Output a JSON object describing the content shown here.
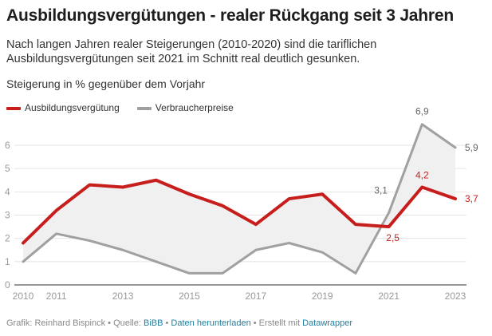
{
  "title": "Ausbildungsvergütungen - realer Rückgang seit 3 Jahren",
  "description": "Nach langen Jahren realer Steigerungen (2010-2020) sind die tariflichen Ausbildungsvergütungen seit 2021 im Schnitt real deutlich gesunken.",
  "footer": {
    "credit": "Grafik: Reinhard Bispinck • Quelle: ",
    "source": "BiBB",
    "sep1": " • ",
    "download": "Daten herunterladen",
    "sep2": " • Erstellt mit ",
    "tool": "Datawrapper"
  },
  "chart_data": {
    "type": "line",
    "title": "Steigerung in % gegenüber dem Vorjahr",
    "x": [
      2010,
      2011,
      2012,
      2013,
      2014,
      2015,
      2016,
      2017,
      2018,
      2019,
      2020,
      2021,
      2022,
      2023
    ],
    "xticks": [
      "2010",
      "2011",
      "2013",
      "2015",
      "2017",
      "2019",
      "2021",
      "2023"
    ],
    "yticks": [
      "0",
      "1",
      "2",
      "3",
      "4",
      "5",
      "6"
    ],
    "ylim": [
      0,
      6.9
    ],
    "grid": true,
    "legend": "top-left",
    "area_between_series": "#f0f0f0",
    "series": [
      {
        "name": "Ausbildungsvergütung",
        "color": "#c71e1d",
        "values": [
          1.8,
          3.2,
          4.3,
          4.2,
          4.5,
          3.9,
          3.4,
          2.6,
          3.7,
          3.9,
          2.6,
          2.5,
          4.2,
          3.7
        ]
      },
      {
        "name": "Verbraucherpreise",
        "color": "#a0a0a0",
        "values": [
          1.0,
          2.2,
          1.9,
          1.5,
          1.0,
          0.5,
          0.5,
          1.5,
          1.8,
          1.4,
          0.5,
          3.1,
          6.9,
          5.9
        ]
      }
    ],
    "annotations": [
      {
        "text": "3,1",
        "series": 1,
        "x": 2021
      },
      {
        "text": "2,5",
        "series": 0,
        "x": 2021
      },
      {
        "text": "6,9",
        "series": 1,
        "x": 2022
      },
      {
        "text": "4,2",
        "series": 0,
        "x": 2022
      },
      {
        "text": "5,9",
        "series": 1,
        "x": 2023
      },
      {
        "text": "3,7",
        "series": 0,
        "x": 2023
      }
    ]
  }
}
